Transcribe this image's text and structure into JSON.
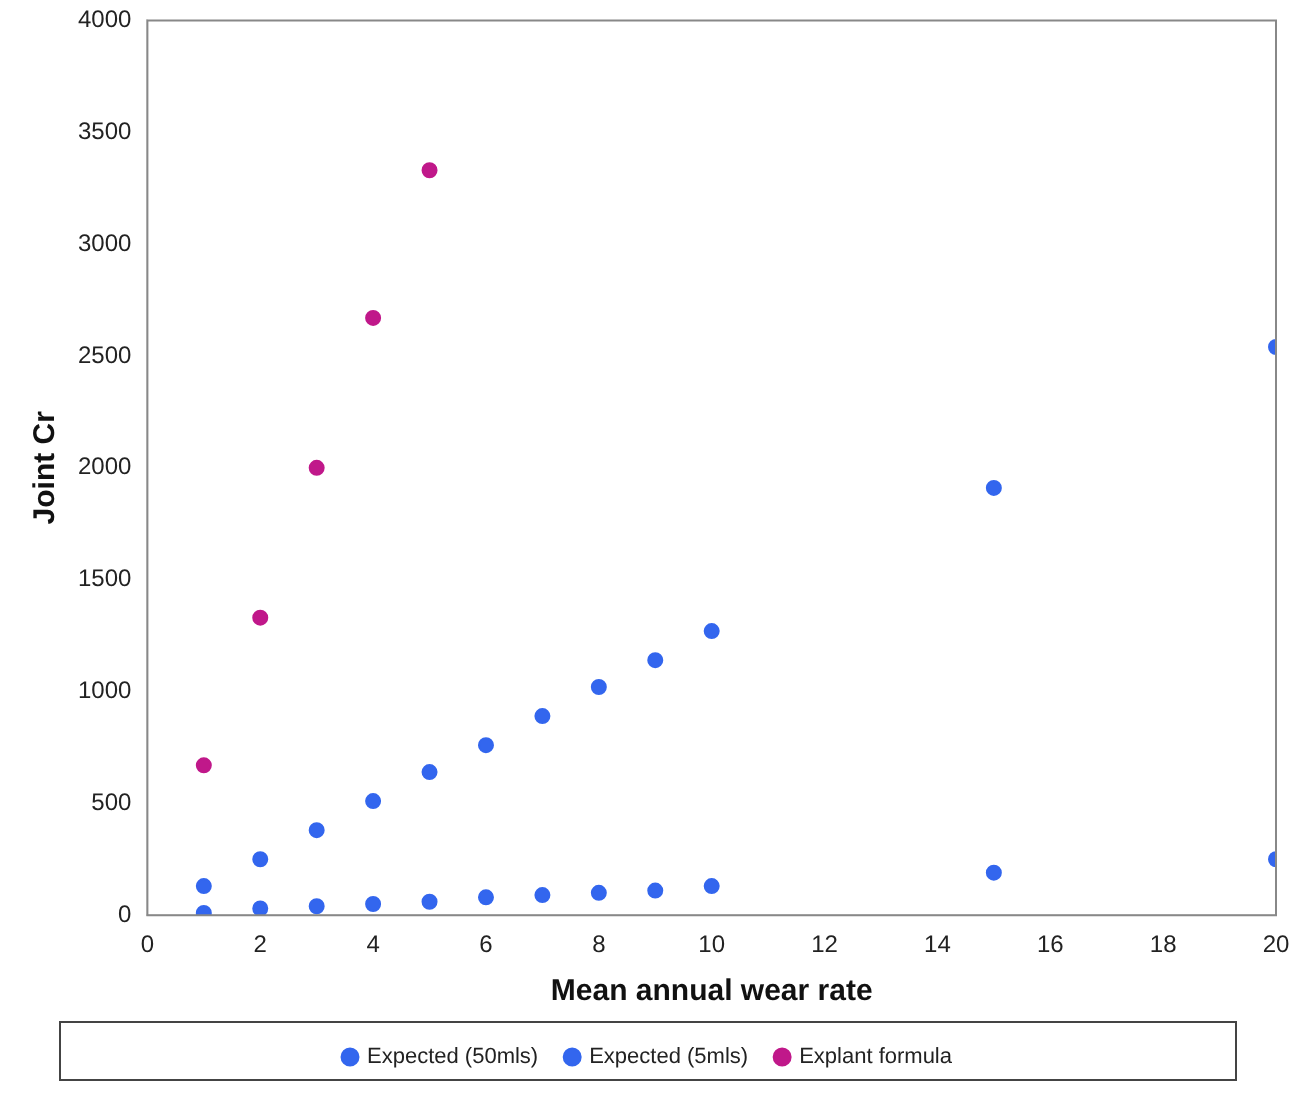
{
  "chart_data": {
    "type": "scatter",
    "xlabel": "Mean annual wear rate",
    "ylabel": "Joint Cr",
    "x": [
      1,
      2,
      3,
      4,
      5,
      6,
      7,
      8,
      9,
      10,
      15,
      20
    ],
    "series": [
      {
        "name": "Expected (50mls)",
        "color": "#3366ee",
        "values": [
          10,
          30,
          40,
          50,
          60,
          80,
          90,
          100,
          110,
          130,
          190,
          250
        ]
      },
      {
        "name": "Expected (5mls)",
        "color": "#3366ee",
        "values": [
          130,
          250,
          380,
          510,
          640,
          760,
          890,
          1020,
          1140,
          1270,
          1910,
          2540
        ]
      },
      {
        "name": "Explant formula",
        "color": "#c0188a",
        "values": [
          670,
          1330,
          2000,
          2670,
          3330,
          null,
          null,
          null,
          null,
          null,
          null,
          null
        ]
      }
    ],
    "xlim": [
      0,
      20
    ],
    "xticks": [
      0,
      2,
      4,
      6,
      8,
      10,
      12,
      14,
      16,
      18,
      20
    ],
    "ylim": [
      0,
      4000
    ],
    "yticks": [
      0,
      500,
      1000,
      1500,
      2000,
      2500,
      3000,
      3500,
      4000
    ],
    "grid": false,
    "legend": "bottom",
    "marker": "circle"
  }
}
